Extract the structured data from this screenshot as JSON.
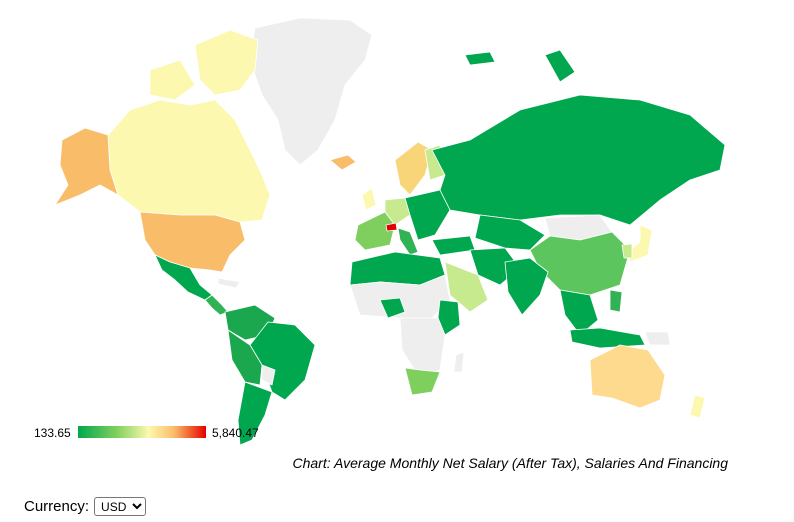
{
  "legend": {
    "min_label": "133.65",
    "max_label": "5,840.47"
  },
  "caption": "Chart: Average Monthly Net Salary (After Tax), Salaries And Financing",
  "currency": {
    "label": "Currency:",
    "selected": "USD"
  },
  "colors": {
    "no_data": "#eeeeee",
    "low": "#00a74e",
    "mid": "#fdf8b0",
    "high": "#e00000",
    "border": "#ffffff"
  }
}
